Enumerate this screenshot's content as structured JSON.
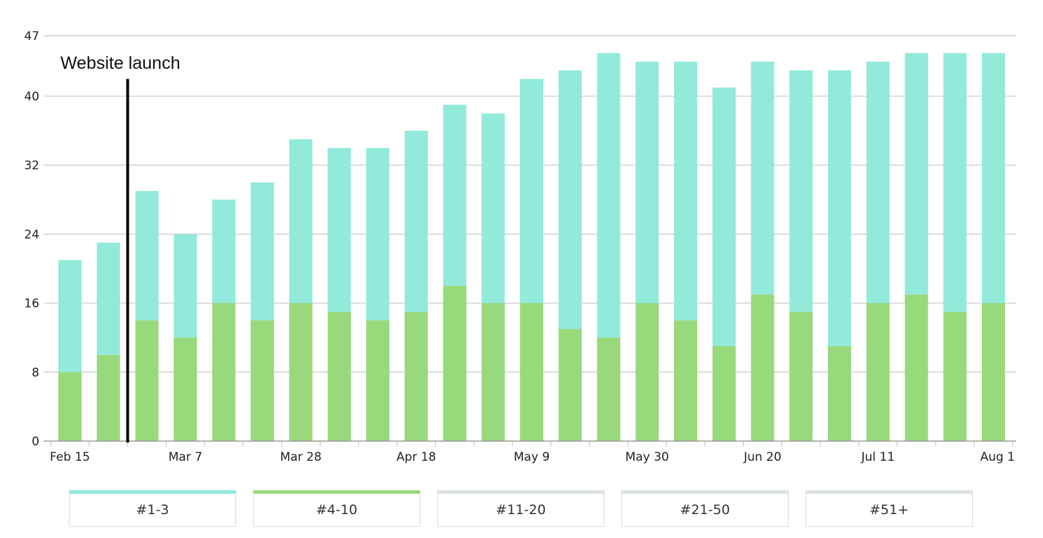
{
  "chart_data": {
    "type": "bar",
    "stacked": true,
    "title": "",
    "xlabel": "",
    "ylabel": "",
    "ylim": [
      0,
      47
    ],
    "y_ticks": [
      0,
      8,
      16,
      24,
      32,
      40,
      47
    ],
    "grid": true,
    "x_tick_labels": [
      "Feb 15",
      "Mar 7",
      "Mar 28",
      "Apr 18",
      "May 9",
      "May 30",
      "Jun 20",
      "Jul 11",
      "Aug 1"
    ],
    "x_tick_label_bar_index": [
      0,
      3,
      6,
      9,
      12,
      15,
      18,
      21,
      24
    ],
    "categories": [
      "Feb 15",
      "",
      "",
      "Mar 7",
      "",
      "",
      "Mar 28",
      "",
      "",
      "Apr 18",
      "",
      "",
      "May 9",
      "",
      "",
      "May 30",
      "",
      "",
      "Jun 20",
      "",
      "",
      "Jul 11",
      "",
      "",
      "Aug 1"
    ],
    "series": [
      {
        "name": "#4-10",
        "color": "#98d97b",
        "values": [
          8,
          10,
          14,
          12,
          16,
          14,
          16,
          15,
          14,
          15,
          18,
          16,
          16,
          13,
          12,
          16,
          14,
          11,
          17,
          15,
          11,
          16,
          17,
          15,
          16
        ]
      },
      {
        "name": "#1-3",
        "color": "#92eada",
        "values": [
          13,
          13,
          15,
          12,
          12,
          16,
          19,
          19,
          20,
          21,
          21,
          22,
          26,
          30,
          33,
          28,
          30,
          30,
          27,
          28,
          32,
          28,
          28,
          30,
          29
        ]
      }
    ],
    "annotation": {
      "label": "Website launch",
      "after_bar_index": 1,
      "top_value": 42
    }
  },
  "legend": [
    {
      "label": "#1-3",
      "color": "#92eada"
    },
    {
      "label": "#4-10",
      "color": "#98d97b"
    },
    {
      "label": "#11-20",
      "color": "#dce3e1"
    },
    {
      "label": "#21-50",
      "color": "#dce3e1"
    },
    {
      "label": "#51+",
      "color": "#dce3e1"
    }
  ]
}
